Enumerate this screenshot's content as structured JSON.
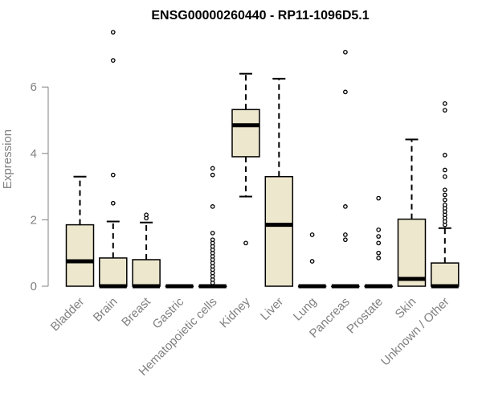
{
  "chart_data": {
    "type": "boxplot",
    "title": "ENSG00000260440 - RP11-1096D5.1",
    "xlabel": "",
    "ylabel": "Expression",
    "ylim": [
      0,
      7.8
    ],
    "yticks": [
      0,
      2,
      4,
      6
    ],
    "box_fill": "#ede7cd",
    "categories": [
      "Bladder",
      "Brain",
      "Breast",
      "Gastric",
      "Hematopoietic cells",
      "Kidney",
      "Liver",
      "Lung",
      "Pancreas",
      "Prostate",
      "Skin",
      "Unknown / Other"
    ],
    "series": [
      {
        "name": "Bladder",
        "q1": 0,
        "median": 0.75,
        "q3": 1.85,
        "whisker_low": 0,
        "whisker_high": 3.3,
        "outliers": []
      },
      {
        "name": "Brain",
        "q1": 0,
        "median": 0,
        "q3": 0.85,
        "whisker_low": 0,
        "whisker_high": 1.95,
        "outliers": [
          2.5,
          3.35,
          6.8,
          7.65
        ]
      },
      {
        "name": "Breast",
        "q1": 0,
        "median": 0,
        "q3": 0.8,
        "whisker_low": 0,
        "whisker_high": 1.92,
        "outliers": [
          2.05,
          2.15
        ]
      },
      {
        "name": "Gastric",
        "q1": 0,
        "median": 0,
        "q3": 0,
        "whisker_low": 0,
        "whisker_high": 0,
        "outliers": []
      },
      {
        "name": "Hematopoietic cells",
        "q1": 0,
        "median": 0,
        "q3": 0,
        "whisker_low": 0,
        "whisker_high": 0,
        "outliers": [
          0.1,
          0.2,
          0.3,
          0.4,
          0.5,
          0.6,
          0.7,
          0.8,
          0.9,
          1.0,
          1.1,
          1.2,
          1.3,
          1.4,
          1.6,
          2.4,
          3.35,
          3.55
        ]
      },
      {
        "name": "Kidney",
        "q1": 3.9,
        "median": 4.85,
        "q3": 5.32,
        "whisker_low": 2.7,
        "whisker_high": 6.4,
        "outliers": [
          1.3
        ]
      },
      {
        "name": "Liver",
        "q1": 0,
        "median": 1.85,
        "q3": 3.3,
        "whisker_low": 0,
        "whisker_high": 6.25,
        "outliers": []
      },
      {
        "name": "Lung",
        "q1": 0,
        "median": 0,
        "q3": 0,
        "whisker_low": 0,
        "whisker_high": 0,
        "outliers": [
          0.75,
          1.55
        ]
      },
      {
        "name": "Pancreas",
        "q1": 0,
        "median": 0,
        "q3": 0,
        "whisker_low": 0,
        "whisker_high": 0,
        "outliers": [
          1.4,
          1.55,
          2.4,
          5.85,
          7.05
        ]
      },
      {
        "name": "Prostate",
        "q1": 0,
        "median": 0,
        "q3": 0,
        "whisker_low": 0,
        "whisker_high": 0,
        "outliers": [
          0.85,
          1.0,
          1.3,
          1.5,
          1.7,
          2.65
        ]
      },
      {
        "name": "Skin",
        "q1": 0,
        "median": 0.22,
        "q3": 2.02,
        "whisker_low": 0,
        "whisker_high": 4.42,
        "outliers": []
      },
      {
        "name": "Unknown / Other",
        "q1": 0,
        "median": 0,
        "q3": 0.7,
        "whisker_low": 0,
        "whisker_high": 1.75,
        "outliers": [
          1.85,
          1.95,
          2.05,
          2.15,
          2.25,
          2.35,
          2.45,
          2.6,
          2.75,
          2.9,
          3.3,
          3.5,
          3.95,
          5.3,
          5.5
        ]
      }
    ]
  }
}
